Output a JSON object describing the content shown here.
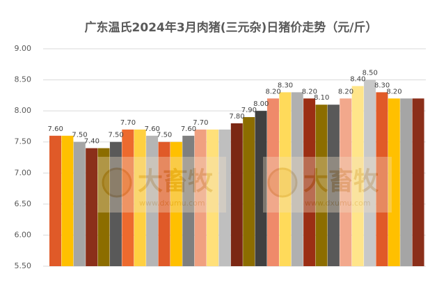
{
  "chart_data": {
    "type": "bar",
    "title": "广东温氏2024年3月肉猪(三元杂)日猪价走势（元/斤）",
    "values": [
      7.6,
      7.6,
      7.5,
      7.4,
      7.4,
      7.5,
      7.7,
      7.7,
      7.6,
      7.5,
      7.5,
      7.6,
      7.7,
      7.7,
      7.7,
      7.8,
      7.9,
      8.0,
      8.2,
      8.3,
      8.3,
      8.2,
      8.1,
      8.1,
      8.2,
      8.4,
      8.5,
      8.3,
      8.2,
      8.2,
      8.2
    ],
    "value_labels": [
      "7.60",
      null,
      "7.50",
      "7.40",
      null,
      "7.50",
      "7.70",
      null,
      "7.60",
      "7.50",
      null,
      "7.60",
      "7.70",
      null,
      null,
      "7.80",
      "7.90",
      "8.00",
      "8.20",
      "8.30",
      null,
      "8.20",
      "8.10",
      null,
      "8.20",
      "8.40",
      "8.50",
      "8.30",
      "8.20",
      null,
      null
    ],
    "colors": [
      "#e05a28",
      "#ffc000",
      "#a5a5a5",
      "#8b2f1a",
      "#8c6d00",
      "#595959",
      "#ed6a2e",
      "#ffd040",
      "#b5b5b5",
      "#e05a28",
      "#ffc000",
      "#7f7f7f",
      "#f0a080",
      "#ffe07a",
      "#bfbfbf",
      "#7b2713",
      "#8c6d00",
      "#404040",
      "#ef8a6a",
      "#ffda5a",
      "#b0b0b0",
      "#9b2e14",
      "#8c6d00",
      "#595959",
      "#f2a88c",
      "#ffe58a",
      "#c8c8c8",
      "#e05a28",
      "#ffc000",
      "#a5a5a5",
      "#8b2f1a"
    ],
    "ylim": [
      5.5,
      9.0
    ],
    "yticks": [
      {
        "value": 5.5,
        "label": "5.50"
      },
      {
        "value": 6.0,
        "label": "6.00"
      },
      {
        "value": 6.5,
        "label": "6.50"
      },
      {
        "value": 7.0,
        "label": "7.00"
      },
      {
        "value": 7.5,
        "label": "7.50"
      },
      {
        "value": 8.0,
        "label": "8.00"
      },
      {
        "value": 8.5,
        "label": "8.50"
      },
      {
        "value": 9.0,
        "label": "9.00"
      }
    ],
    "grid": true,
    "watermark": {
      "text": "大畜牧",
      "url": "www.dxumu.com"
    }
  }
}
